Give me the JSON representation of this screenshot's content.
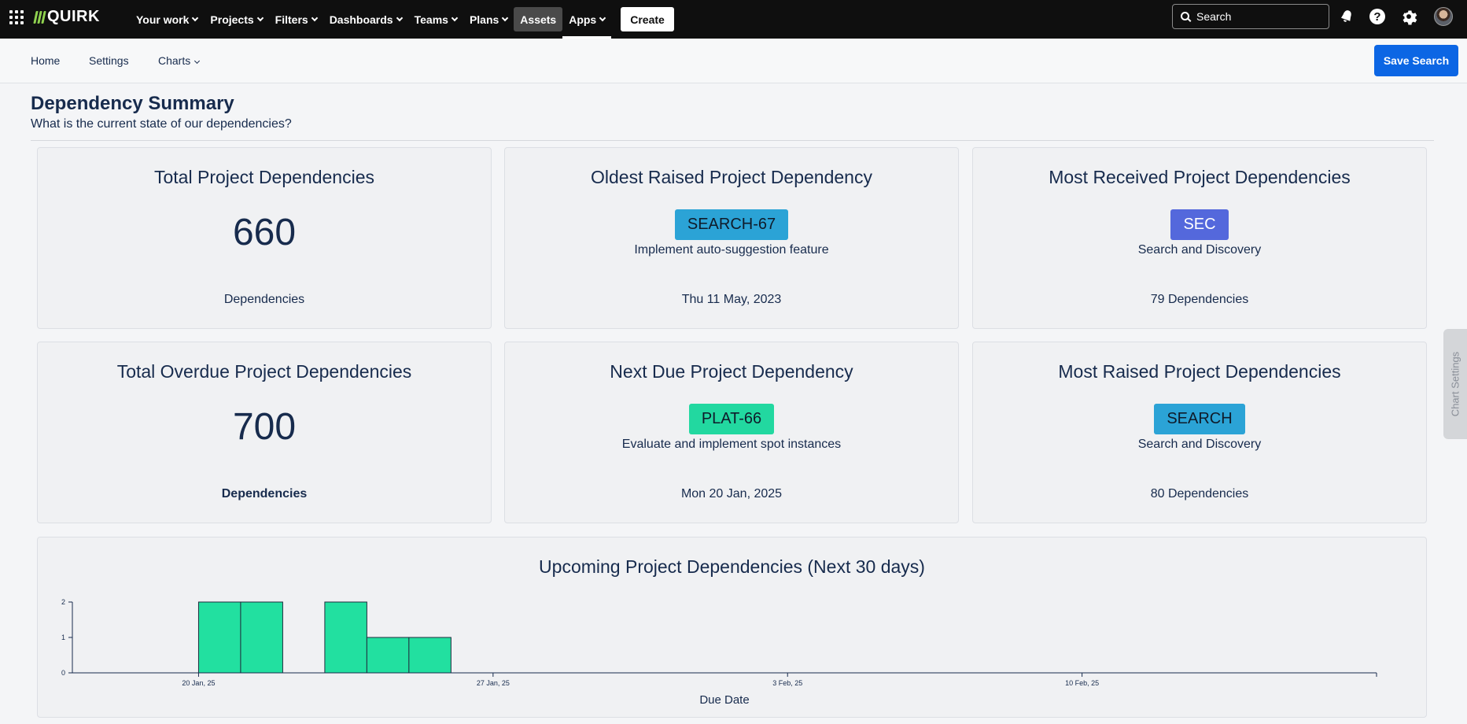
{
  "topnav": {
    "logo": "QUIRK",
    "menu": [
      {
        "label": "Your work",
        "chevron": true
      },
      {
        "label": "Projects",
        "chevron": true
      },
      {
        "label": "Filters",
        "chevron": true
      },
      {
        "label": "Dashboards",
        "chevron": true
      },
      {
        "label": "Teams",
        "chevron": true
      },
      {
        "label": "Plans",
        "chevron": true
      },
      {
        "label": "Assets",
        "chevron": false
      },
      {
        "label": "Apps",
        "chevron": true
      }
    ],
    "create_label": "Create",
    "search_placeholder": "Search",
    "icons": [
      "notifications-icon",
      "help-icon",
      "settings-icon"
    ]
  },
  "subnav": {
    "home": "Home",
    "settings": "Settings",
    "charts": "Charts",
    "save_search": "Save Search"
  },
  "header": {
    "title": "Dependency Summary",
    "subtitle": "What is the current state of our dependencies?"
  },
  "cards": {
    "total": {
      "title": "Total Project Dependencies",
      "value": "660",
      "footer": "Dependencies"
    },
    "oldest": {
      "title": "Oldest Raised Project Dependency",
      "key": "SEARCH-67",
      "key_color": "#2ba3d6",
      "desc": "Implement auto-suggestion feature",
      "footer": "Thu 11 May, 2023"
    },
    "most_received": {
      "title": "Most Received Project Dependencies",
      "key": "SEC",
      "key_color": "#5468dc",
      "desc": "Search and Discovery",
      "footer": "79 Dependencies"
    },
    "overdue": {
      "title": "Total Overdue Project Dependencies",
      "value": "700",
      "footer": "Dependencies"
    },
    "next_due": {
      "title": "Next Due Project Dependency",
      "key": "PLAT-66",
      "key_color": "#22d8a0",
      "desc": "Evaluate and implement spot instances",
      "footer": "Mon 20 Jan, 2025"
    },
    "most_raised": {
      "title": "Most Raised Project Dependencies",
      "key": "SEARCH",
      "key_color": "#2ba3d6",
      "desc": "Search and Discovery",
      "footer": "80 Dependencies"
    }
  },
  "side_tab": "Chart Settings",
  "chart_data": {
    "type": "bar",
    "title": "Upcoming Project Dependencies (Next 30 days)",
    "xlabel": "Due Date",
    "ylabel": "",
    "x_ticks": [
      "20 Jan, 25",
      "27 Jan, 25",
      "3 Feb, 25",
      "10 Feb, 25"
    ],
    "y_ticks": [
      "0",
      "1",
      "2"
    ],
    "ylim": [
      0,
      2
    ],
    "x_range": [
      "2025-01-17",
      "2025-02-17"
    ],
    "bars": [
      {
        "date": "2025-01-20",
        "value": 2
      },
      {
        "date": "2025-01-21",
        "value": 2
      },
      {
        "date": "2025-01-23",
        "value": 2
      },
      {
        "date": "2025-01-24",
        "value": 1
      },
      {
        "date": "2025-01-25",
        "value": 1
      }
    ],
    "bar_color": "#22e0a0",
    "grid": false
  }
}
